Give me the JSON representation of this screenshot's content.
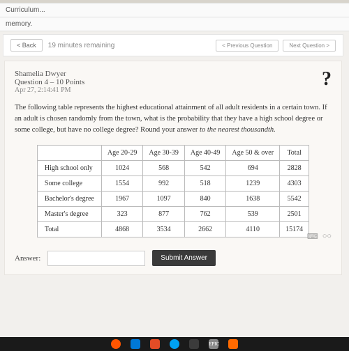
{
  "breadcrumbs": {
    "curriculum": "Curriculum...",
    "memory": "memory."
  },
  "nav": {
    "back": "< Back",
    "timer": "19 minutes remaining",
    "prev": "< Previous Question",
    "next": "Next Question >"
  },
  "header": {
    "student": "Shamelia Dwyer",
    "question": "Question 4 – 10 Points",
    "date": "Apr 27, 2:14:41 PM",
    "help": "?"
  },
  "prompt": "The following table represents the highest educational attainment of all adult residents in a certain town. If an adult is chosen randomly from the town, what is the probability that they have a high school degree or some college, but have no college degree? Round your answer ",
  "prompt_em": "to the nearest thousandth.",
  "table": {
    "columns": [
      "",
      "Age 20-29",
      "Age 30-39",
      "Age 40-49",
      "Age 50 & over",
      "Total"
    ],
    "rows": [
      {
        "label": "High school only",
        "cells": [
          "1024",
          "568",
          "542",
          "694",
          "2828"
        ]
      },
      {
        "label": "Some college",
        "cells": [
          "1554",
          "992",
          "518",
          "1239",
          "4303"
        ]
      },
      {
        "label": "Bachelor's degree",
        "cells": [
          "1967",
          "1097",
          "840",
          "1638",
          "5542"
        ]
      },
      {
        "label": "Master's degree",
        "cells": [
          "323",
          "877",
          "762",
          "539",
          "2501"
        ]
      },
      {
        "label": "Total",
        "cells": [
          "4868",
          "3534",
          "2662",
          "4110",
          "15174"
        ]
      }
    ],
    "styling": {
      "border_color": "#bbbbbb",
      "bg": "#ffffff",
      "font_size": 10,
      "cell_padding": "5px 8px",
      "grand_total_bold": true
    }
  },
  "answer": {
    "label": "Answer:",
    "value": "",
    "placeholder": "",
    "submit": "Submit Answer"
  },
  "taskbar_colors": [
    "#ff5500",
    "#0078d7",
    "#e34c26",
    "#00a1f1",
    "#3b3b3b",
    "#e50914",
    "#ff6a00"
  ]
}
